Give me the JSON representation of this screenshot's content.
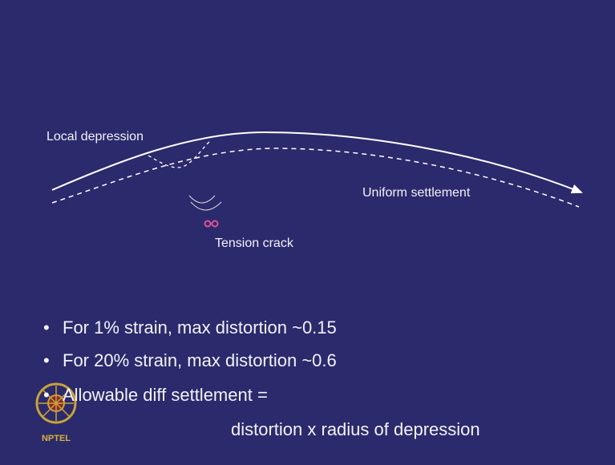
{
  "diagram": {
    "local_depression": "Local depression",
    "uniform_settlement": "Uniform settlement",
    "tension_crack": "Tension crack"
  },
  "bullets": [
    "For 1% strain, max distortion ~0.15",
    "For 20% strain, max distortion ~0.6",
    "Allowable diff settlement ="
  ],
  "continuation": "distortion x radius of depression",
  "logo": "NPTEL"
}
